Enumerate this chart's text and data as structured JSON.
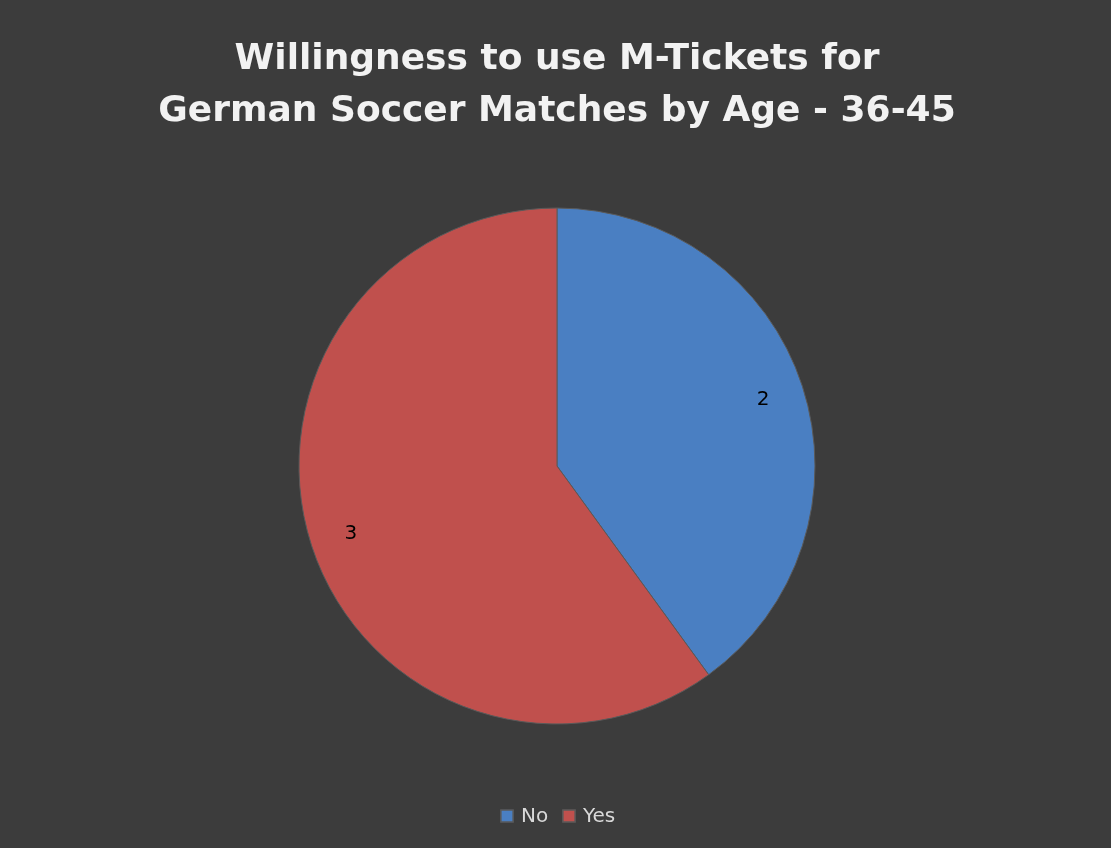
{
  "chart_data": {
    "type": "pie",
    "title": "Willingness to use M-Tickets for German Soccer Matches by Age - 36-45",
    "categories": [
      "No",
      "Yes"
    ],
    "values": [
      2,
      3
    ],
    "colors": [
      "#4a7fc2",
      "#c0504d"
    ],
    "data_labels": true,
    "legend": "bottom"
  }
}
